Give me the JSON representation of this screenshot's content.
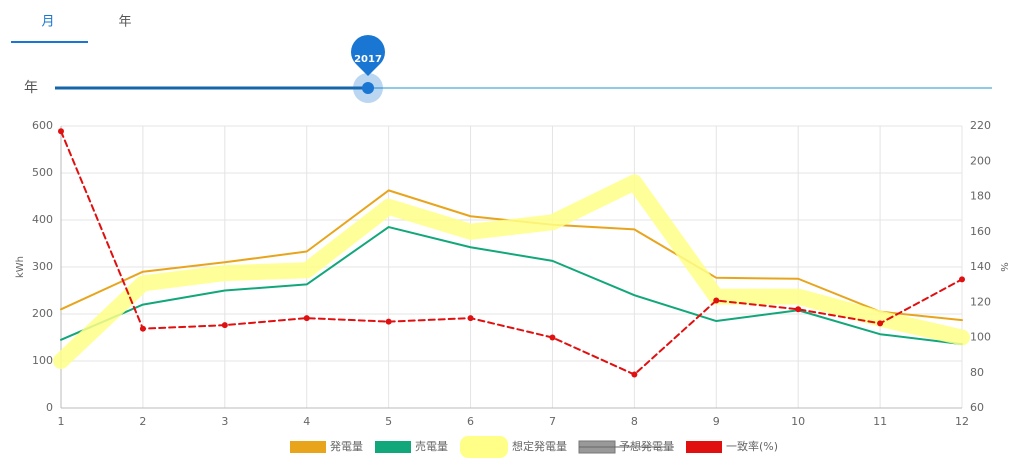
{
  "tabs": [
    "月",
    "年"
  ],
  "active_tab": 0,
  "slider": {
    "label": "年",
    "value": 2017
  },
  "chart_data": {
    "type": "line",
    "x": [
      1,
      2,
      3,
      4,
      5,
      6,
      7,
      8,
      9,
      10,
      11,
      12
    ],
    "xlim": [
      1,
      12
    ],
    "xticks": [
      1,
      2,
      3,
      4,
      5,
      6,
      7,
      8,
      9,
      10,
      11,
      12
    ],
    "ylim": [
      0,
      600
    ],
    "yticks": [
      0,
      100,
      200,
      300,
      400,
      500,
      600
    ],
    "y2lim": [
      60,
      220
    ],
    "y2ticks": [
      60,
      80,
      100,
      120,
      140,
      160,
      180,
      200,
      220
    ],
    "ylabel": "kWh",
    "y2label": "%",
    "grid": true,
    "series": [
      {
        "name": "発電量",
        "color": "#e8a51c",
        "values": [
          210,
          290,
          310,
          333,
          463,
          408,
          390,
          380,
          277,
          275,
          205,
          187
        ]
      },
      {
        "name": "売電量",
        "color": "#12a77a",
        "values": [
          145,
          220,
          250,
          263,
          385,
          342,
          313,
          240,
          185,
          208,
          157,
          136
        ]
      },
      {
        "name": "想定発電量",
        "color": "#ffff88",
        "width": 16,
        "values": [
          100,
          265,
          287,
          293,
          428,
          375,
          395,
          480,
          237,
          237,
          190,
          150
        ]
      },
      {
        "name": "予想発電量",
        "color": "#999999",
        "hidden": true,
        "values": [
          null,
          null,
          null,
          null,
          null,
          null,
          null,
          null,
          null,
          null,
          null,
          null
        ]
      },
      {
        "name": "一致率(%)",
        "color": "#e01010",
        "axis": "y2",
        "dashed": true,
        "markers": true,
        "values": [
          217,
          105,
          107,
          111,
          109,
          111,
          100,
          79,
          121,
          116,
          108,
          133
        ]
      }
    ]
  }
}
